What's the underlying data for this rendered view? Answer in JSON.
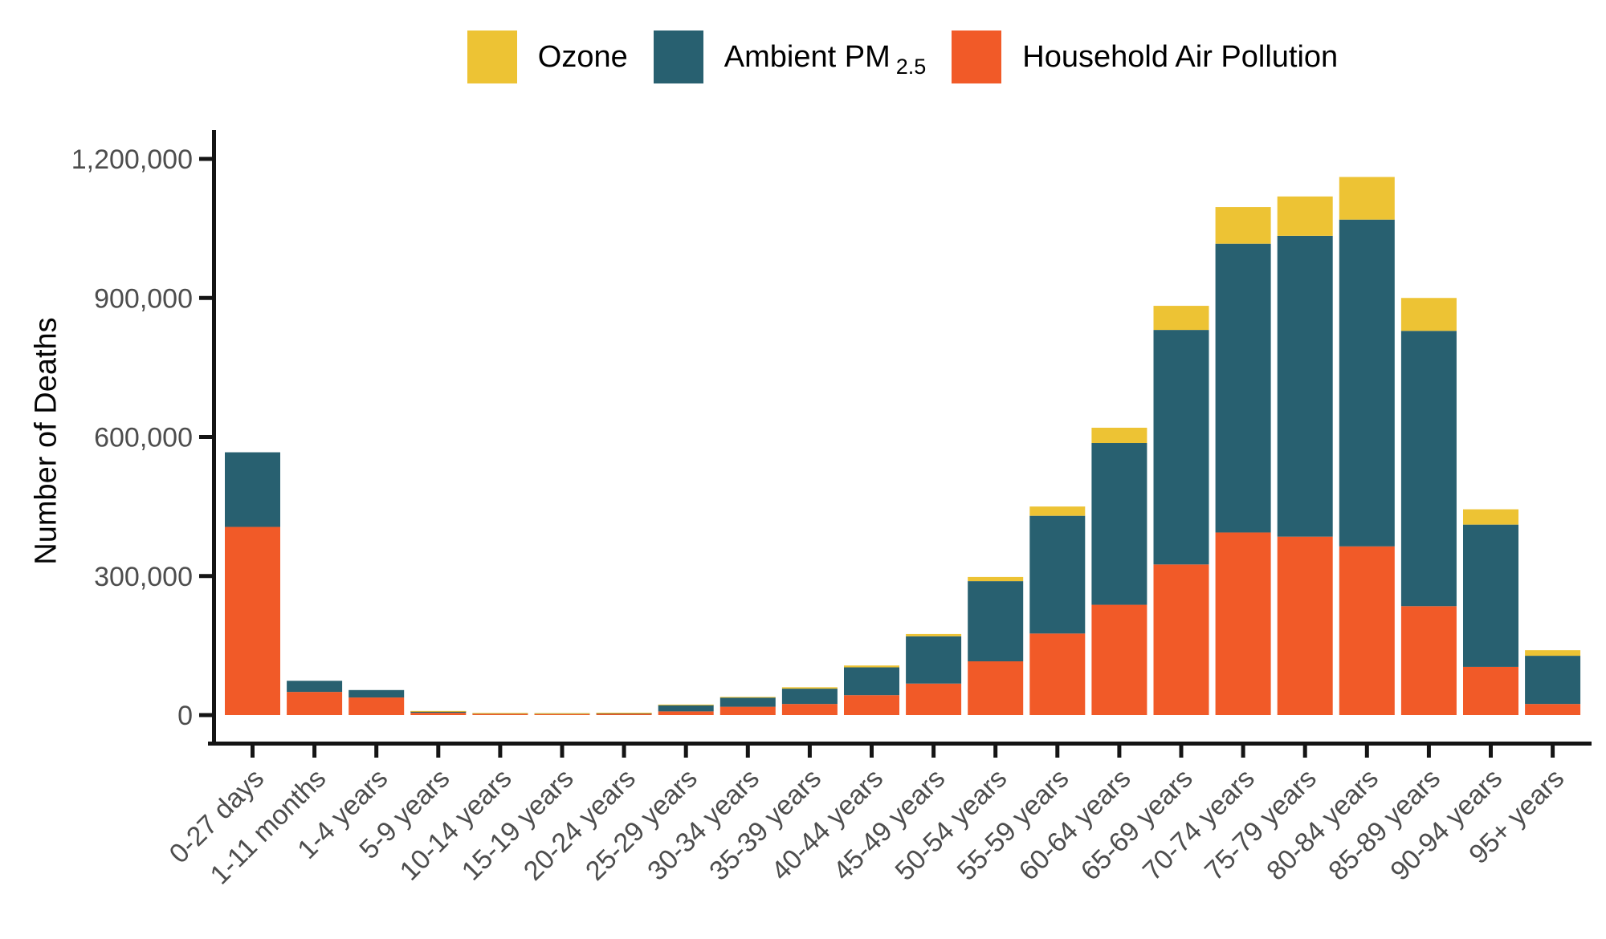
{
  "legend": {
    "items": [
      {
        "label": "Ozone",
        "color": "#EDC334"
      },
      {
        "label_main": "Ambient PM",
        "label_sub": "2.5",
        "color": "#286070"
      },
      {
        "label": "Household Air Pollution",
        "color": "#F15A28"
      }
    ]
  },
  "axes": {
    "y_title": "Number of Deaths"
  },
  "chart_data": {
    "type": "bar",
    "stacked": true,
    "title": "",
    "xlabel": "",
    "ylabel": "Number of Deaths",
    "ylim": [
      0,
      1260000
    ],
    "grid": false,
    "legend_position": "top",
    "y_ticks": [
      {
        "value": 0,
        "label": "0"
      },
      {
        "value": 300000,
        "label": "300,000"
      },
      {
        "value": 600000,
        "label": "600,000"
      },
      {
        "value": 900000,
        "label": "900,000"
      },
      {
        "value": 1200000,
        "label": "1,200,000"
      }
    ],
    "categories": [
      "0-27 days",
      "1-11 months",
      "1-4 years",
      "5-9 years",
      "10-14 years",
      "15-19 years",
      "20-24 years",
      "25-29 years",
      "30-34 years",
      "35-39 years",
      "40-44 years",
      "45-49 years",
      "50-54 years",
      "55-59 years",
      "60-64 years",
      "65-69 years",
      "70-74 years",
      "75-79 years",
      "80-84 years",
      "85-89 years",
      "90-94 years",
      "95+ years"
    ],
    "series": [
      {
        "name": "Household Air Pollution",
        "key": "household-air-pollution",
        "color": "#F15A28",
        "values": [
          406000,
          50000,
          38000,
          5000,
          2500,
          2200,
          2600,
          8000,
          18000,
          24000,
          43000,
          68000,
          116000,
          176000,
          238000,
          325000,
          394000,
          385000,
          364000,
          235000,
          104000,
          24000
        ]
      },
      {
        "name": "Ambient PM 2.5",
        "key": "ambient-pm25",
        "color": "#286070",
        "values": [
          161000,
          24000,
          16000,
          3500,
          1800,
          1700,
          2100,
          14000,
          20000,
          33000,
          60000,
          102000,
          173000,
          254000,
          349000,
          506000,
          623000,
          649000,
          705000,
          594000,
          307000,
          104000
        ]
      },
      {
        "name": "Ozone",
        "key": "ozone",
        "color": "#EDC334",
        "values": [
          0,
          0,
          0,
          400,
          300,
          300,
          400,
          700,
          1200,
          3000,
          4000,
          5000,
          9000,
          20000,
          33000,
          52000,
          79000,
          85000,
          92000,
          71000,
          33000,
          12000
        ]
      }
    ],
    "colors": {
      "axis_line": "#141414",
      "tick_text": "#4D4D4D",
      "title_text": "#050505"
    }
  }
}
